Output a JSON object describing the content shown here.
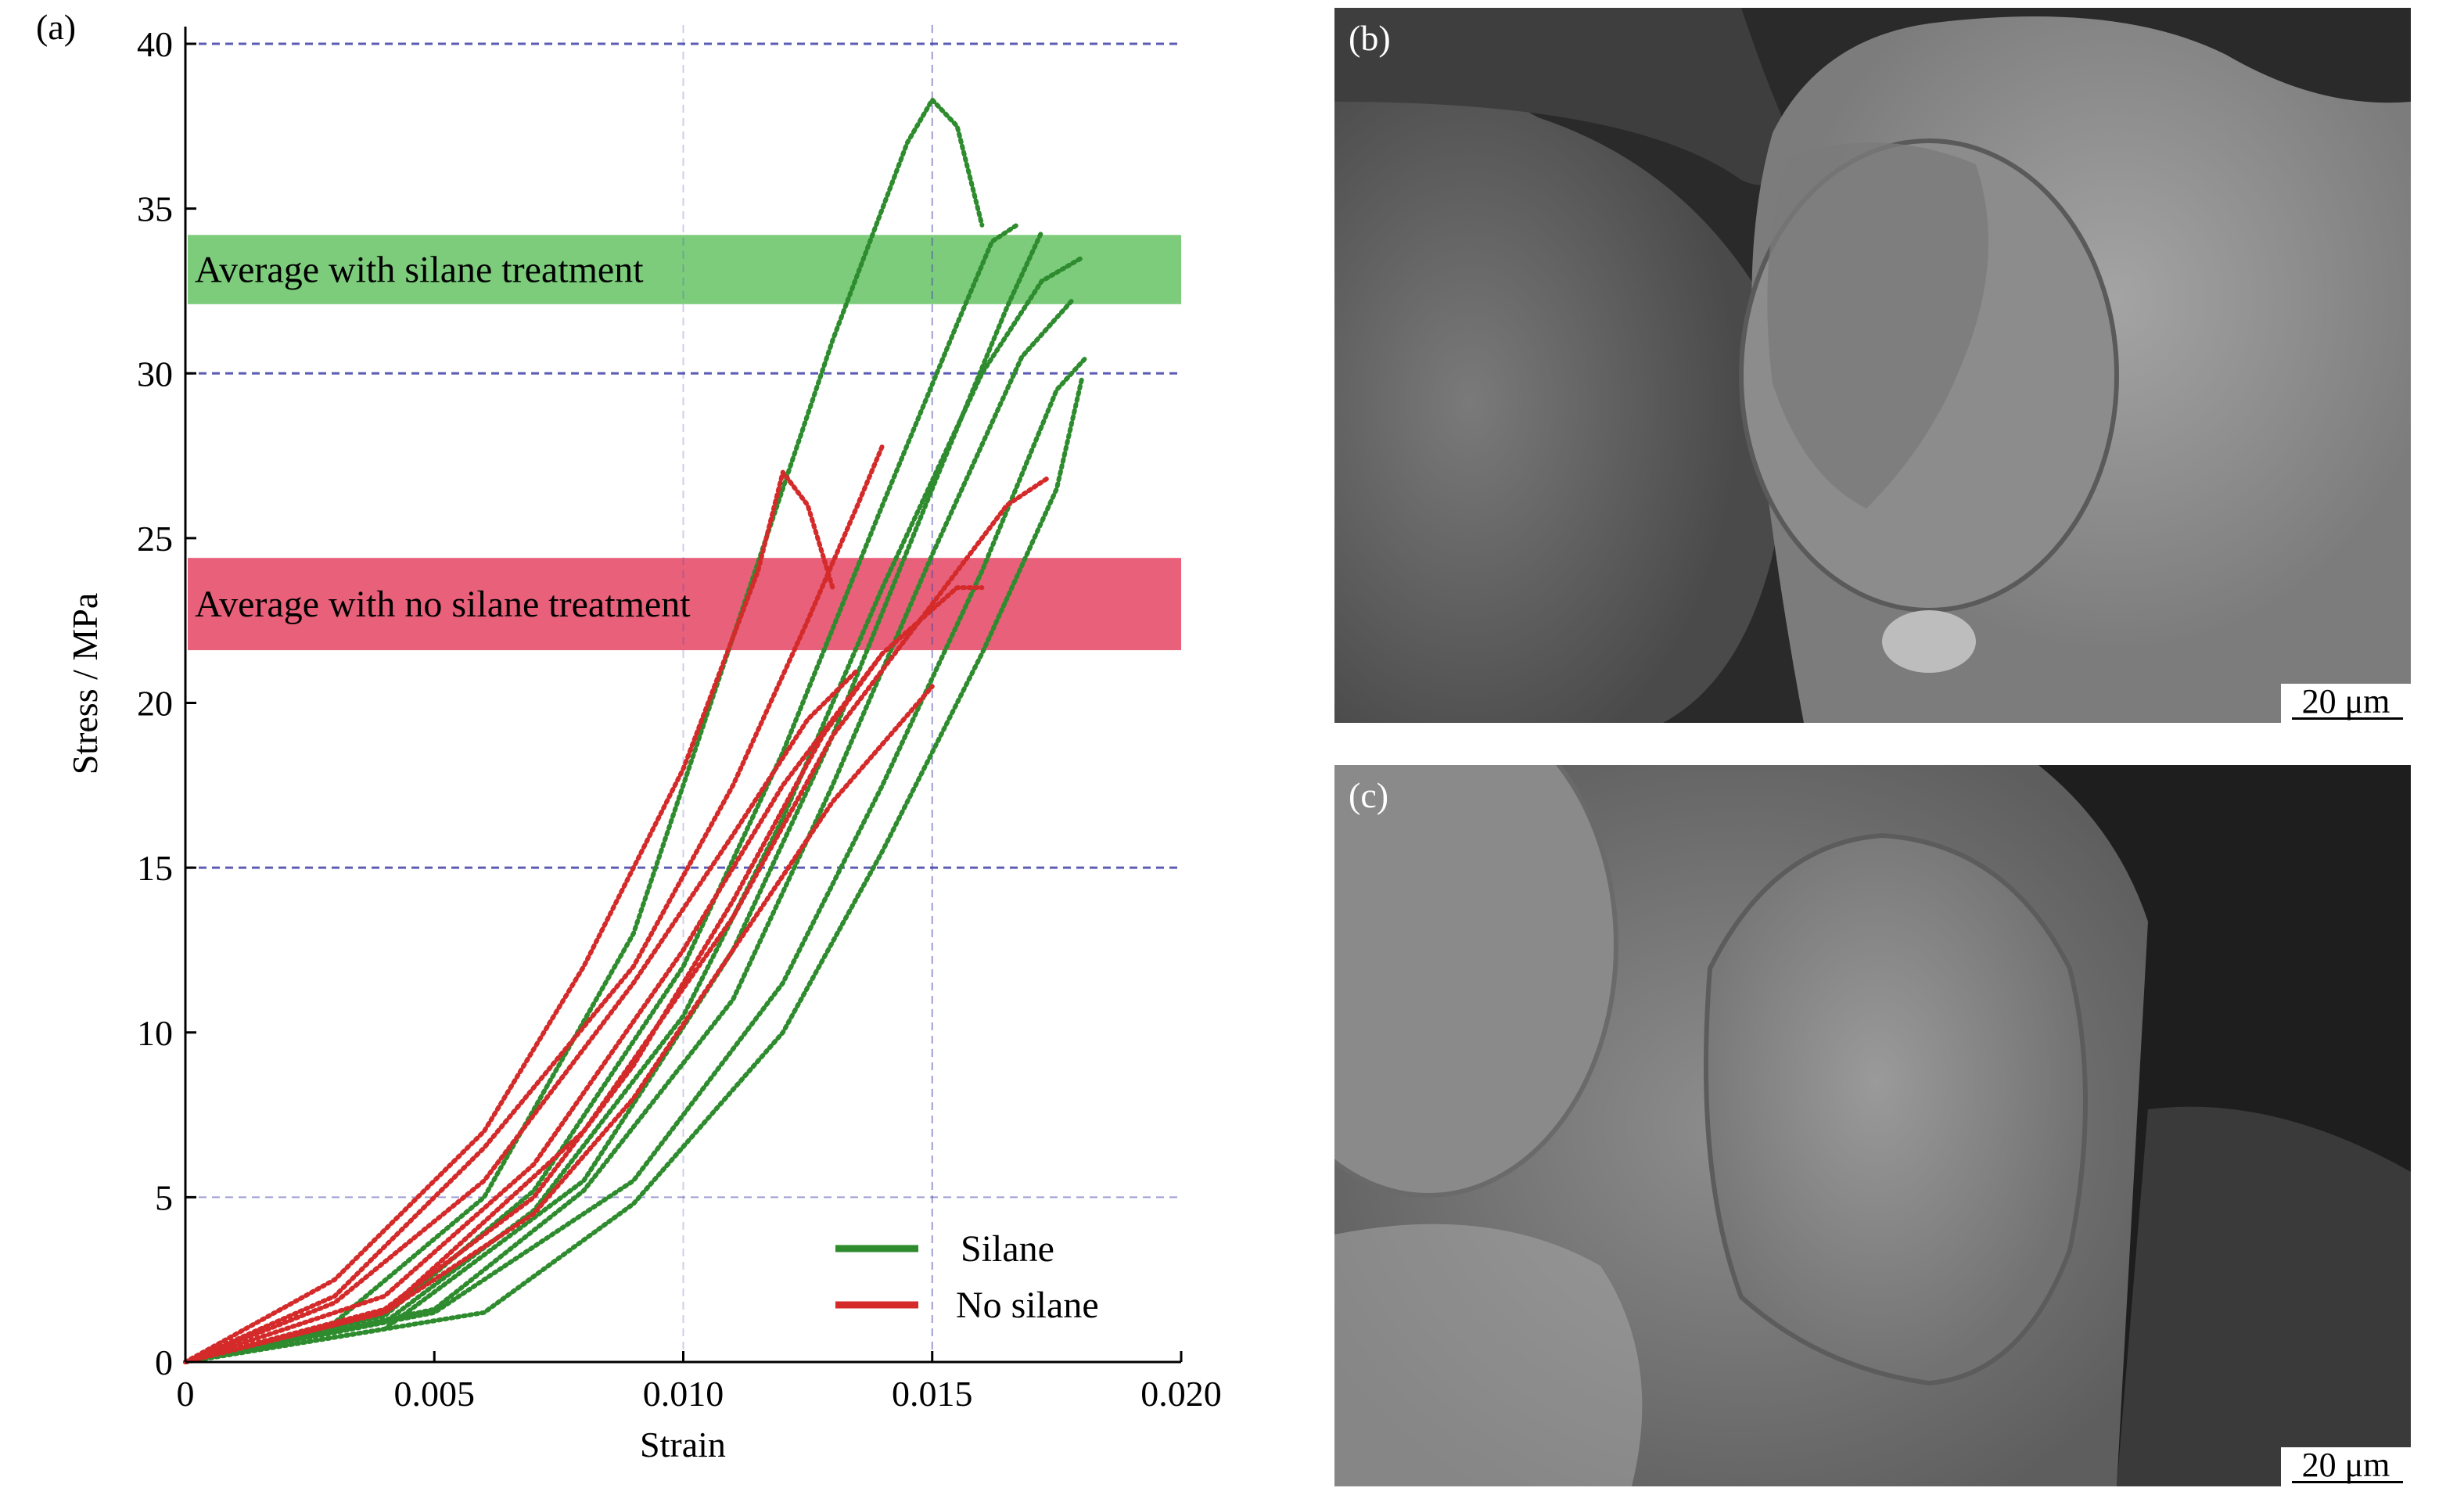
{
  "panel_labels": {
    "a": "(a)",
    "b": "(b)",
    "c": "(c)"
  },
  "scale_bar_label": "20 μm",
  "colors": {
    "silane": "#2e8b2e",
    "no_silane": "#d42a2a",
    "silane_band": "#7ccc7c",
    "no_silane_band": "#e8607a",
    "grid": "#4040a8"
  },
  "chart_data": {
    "type": "line",
    "xlabel": "Strain",
    "ylabel": "Stress / MPa",
    "xlim": [
      0,
      0.02
    ],
    "ylim": [
      0,
      40
    ],
    "x_ticks": [
      "0",
      "0.005",
      "0.010",
      "0.015",
      "0.020"
    ],
    "y_ticks": [
      "0",
      "5",
      "10",
      "15",
      "20",
      "25",
      "30",
      "35",
      "40"
    ],
    "grid": "dashed at y = 5, 15, 30, 40 and x = 0.010, 0.015",
    "legend_position": "bottom-right",
    "bands": [
      {
        "label": "Average with silane treatment",
        "y_from": 32.1,
        "y_to": 34.2,
        "color": "#7ccc7c"
      },
      {
        "label": "Average with no silane treatment",
        "y_from": 21.6,
        "y_to": 24.4,
        "color": "#e8607a"
      }
    ],
    "series": [
      {
        "name": "Silane",
        "color": "#2e8b2e",
        "curves": [
          {
            "x": [
              0,
              0.003,
              0.006,
              0.009,
              0.011,
              0.013,
              0.0145,
              0.015,
              0.0155,
              0.016
            ],
            "y": [
              0,
              1.2,
              5.0,
              13.0,
              22.0,
              31.0,
              37.0,
              38.3,
              37.5,
              34.5
            ]
          },
          {
            "x": [
              0,
              0.004,
              0.007,
              0.01,
              0.012,
              0.014,
              0.0155,
              0.0162,
              0.0167
            ],
            "y": [
              0,
              1.4,
              5.2,
              12.0,
              18.5,
              26.0,
              31.5,
              34.0,
              34.5
            ]
          },
          {
            "x": [
              0,
              0.004,
              0.007,
              0.01,
              0.012,
              0.014,
              0.016,
              0.0172,
              0.018
            ],
            "y": [
              0,
              1.2,
              4.6,
              10.5,
              16.5,
              23.5,
              30.0,
              32.8,
              33.5
            ]
          },
          {
            "x": [
              0,
              0.004,
              0.008,
              0.011,
              0.013,
              0.015,
              0.0165,
              0.0172
            ],
            "y": [
              0,
              1.0,
              5.5,
              12.5,
              19.0,
              26.5,
              32.0,
              34.3
            ]
          },
          {
            "x": [
              0,
              0.005,
              0.008,
              0.011,
              0.013,
              0.015,
              0.0168,
              0.0178
            ],
            "y": [
              0,
              1.6,
              5.2,
              11.0,
              17.5,
              24.5,
              30.5,
              32.2
            ]
          },
          {
            "x": [
              0,
              0.005,
              0.009,
              0.012,
              0.014,
              0.016,
              0.0175,
              0.0181
            ],
            "y": [
              0,
              1.5,
              5.5,
              11.5,
              17.5,
              24.0,
              29.5,
              30.5
            ]
          },
          {
            "x": [
              0,
              0.006,
              0.009,
              0.012,
              0.014,
              0.016,
              0.0175,
              0.018
            ],
            "y": [
              0,
              1.5,
              4.8,
              10.0,
              15.5,
              21.5,
              26.5,
              29.8
            ]
          }
        ]
      },
      {
        "name": "No silane",
        "color": "#d42a2a",
        "curves": [
          {
            "x": [
              0,
              0.003,
              0.006,
              0.008,
              0.01,
              0.0115,
              0.012,
              0.0125,
              0.013
            ],
            "y": [
              0,
              2.5,
              7.0,
              12.0,
              18.0,
              24.0,
              27.0,
              26.0,
              23.5
            ]
          },
          {
            "x": [
              0,
              0.003,
              0.006,
              0.009,
              0.011,
              0.0125,
              0.0135,
              0.014
            ],
            "y": [
              0,
              2.0,
              6.5,
              12.0,
              17.5,
              22.5,
              26.0,
              27.8
            ]
          },
          {
            "x": [
              0,
              0.004,
              0.007,
              0.01,
              0.012,
              0.014,
              0.0155,
              0.016
            ],
            "y": [
              0,
              2.0,
              6.0,
              12.5,
              17.5,
              21.5,
              23.5,
              23.5
            ]
          },
          {
            "x": [
              0,
              0.004,
              0.008,
              0.011,
              0.013,
              0.015,
              0.0165,
              0.0173
            ],
            "y": [
              0,
              1.5,
              7.0,
              13.5,
              19.0,
              23.0,
              26.0,
              26.8
            ]
          },
          {
            "x": [
              0,
              0.003,
              0.006,
              0.009,
              0.011,
              0.0125,
              0.0135
            ],
            "y": [
              0,
              1.8,
              5.5,
              11.5,
              16.0,
              19.5,
              21.0
            ]
          },
          {
            "x": [
              0,
              0.004,
              0.007,
              0.009,
              0.011,
              0.013,
              0.015
            ],
            "y": [
              0,
              1.5,
              4.5,
              8.0,
              12.5,
              17.0,
              20.5
            ]
          },
          {
            "x": [
              0,
              0.004,
              0.007,
              0.009,
              0.011,
              0.0128,
              0.014
            ],
            "y": [
              0,
              1.6,
              5.0,
              9.0,
              14.0,
              19.0,
              21.5
            ]
          }
        ]
      }
    ]
  }
}
